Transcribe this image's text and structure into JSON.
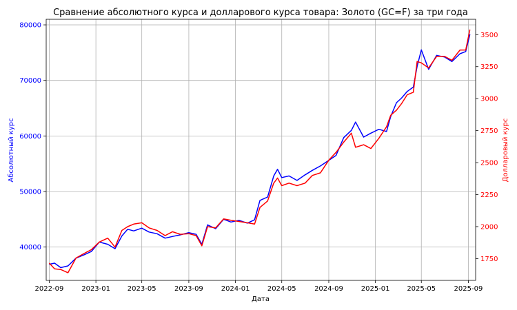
{
  "chart_data": {
    "type": "line",
    "title": "Сравнение абсолютного курса и долларового курса товара: Золото (GC=F) за три года",
    "xlabel": "Дата",
    "ylabel_left": "Абсолютный курс",
    "ylabel_right": "Долларовый курс",
    "grid": true,
    "colors": {
      "left": "#0000ff",
      "right": "#ff0000"
    },
    "x_ticks": [
      "2022-09",
      "2023-01",
      "2023-05",
      "2023-09",
      "2024-01",
      "2024-05",
      "2024-09",
      "2025-01",
      "2025-05",
      "2025-09"
    ],
    "y_left_ticks": [
      "40000",
      "50000",
      "60000",
      "70000",
      "80000"
    ],
    "y_right_ticks": [
      "1750",
      "2000",
      "2250",
      "2500",
      "2750",
      "3000",
      "3250",
      "3500"
    ],
    "ylim_left": [
      34000,
      81000
    ],
    "ylim_right": [
      1580,
      3620
    ],
    "x_range": [
      "2022-08-24",
      "2025-09-20"
    ],
    "series": [
      {
        "name": "Абсолютный курс",
        "axis": "left",
        "x": [
          "2022-09-01",
          "2022-09-15",
          "2022-10-01",
          "2022-10-20",
          "2022-11-10",
          "2022-12-01",
          "2022-12-20",
          "2023-01-10",
          "2023-02-01",
          "2023-02-20",
          "2023-03-10",
          "2023-03-25",
          "2023-04-10",
          "2023-05-01",
          "2023-05-20",
          "2023-06-10",
          "2023-07-01",
          "2023-07-20",
          "2023-08-10",
          "2023-09-01",
          "2023-09-20",
          "2023-10-05",
          "2023-10-20",
          "2023-11-10",
          "2023-12-01",
          "2023-12-20",
          "2024-01-10",
          "2024-02-01",
          "2024-02-20",
          "2024-03-05",
          "2024-03-25",
          "2024-04-10",
          "2024-04-20",
          "2024-05-01",
          "2024-05-20",
          "2024-06-10",
          "2024-07-01",
          "2024-07-20",
          "2024-08-10",
          "2024-09-01",
          "2024-09-20",
          "2024-10-10",
          "2024-10-30",
          "2024-11-10",
          "2024-12-01",
          "2024-12-20",
          "2025-01-10",
          "2025-01-30",
          "2025-02-10",
          "2025-02-25",
          "2025-03-10",
          "2025-03-25",
          "2025-04-10",
          "2025-04-20",
          "2025-05-01",
          "2025-05-20",
          "2025-06-10",
          "2025-07-01",
          "2025-07-20",
          "2025-08-10",
          "2025-08-25",
          "2025-09-05"
        ],
        "values": [
          36900,
          37100,
          36300,
          36600,
          38000,
          38600,
          39200,
          40900,
          40500,
          39700,
          42000,
          43200,
          42900,
          43400,
          42700,
          42400,
          41600,
          41900,
          42200,
          42600,
          42300,
          40500,
          44000,
          43300,
          45000,
          44500,
          44800,
          44300,
          44900,
          48400,
          49000,
          52800,
          54000,
          52500,
          52800,
          52000,
          53000,
          53800,
          54600,
          55600,
          56500,
          59700,
          61000,
          62500,
          59800,
          60500,
          61200,
          60800,
          63500,
          66000,
          66800,
          68000,
          68800,
          72500,
          75500,
          72000,
          74500,
          74200,
          73400,
          74800,
          75200,
          78300
        ]
      },
      {
        "name": "Долларовый курс",
        "axis": "right",
        "x": [
          "2022-09-01",
          "2022-09-15",
          "2022-10-01",
          "2022-10-20",
          "2022-11-10",
          "2022-12-01",
          "2022-12-20",
          "2023-01-10",
          "2023-02-01",
          "2023-02-20",
          "2023-03-10",
          "2023-03-25",
          "2023-04-10",
          "2023-05-01",
          "2023-05-20",
          "2023-06-10",
          "2023-07-01",
          "2023-07-20",
          "2023-08-10",
          "2023-09-01",
          "2023-09-20",
          "2023-10-05",
          "2023-10-20",
          "2023-11-10",
          "2023-12-01",
          "2023-12-20",
          "2024-01-10",
          "2024-02-01",
          "2024-02-20",
          "2024-03-05",
          "2024-03-25",
          "2024-04-10",
          "2024-04-20",
          "2024-05-01",
          "2024-05-20",
          "2024-06-10",
          "2024-07-01",
          "2024-07-20",
          "2024-08-10",
          "2024-09-01",
          "2024-09-20",
          "2024-10-10",
          "2024-10-30",
          "2024-11-10",
          "2024-12-01",
          "2024-12-20",
          "2025-01-10",
          "2025-01-30",
          "2025-02-10",
          "2025-02-25",
          "2025-03-10",
          "2025-03-25",
          "2025-04-10",
          "2025-04-20",
          "2025-05-01",
          "2025-05-20",
          "2025-06-10",
          "2025-07-01",
          "2025-07-20",
          "2025-08-10",
          "2025-08-25",
          "2025-09-05"
        ],
        "values": [
          1715,
          1670,
          1665,
          1640,
          1755,
          1790,
          1820,
          1880,
          1910,
          1840,
          1970,
          2000,
          2020,
          2030,
          1990,
          1970,
          1930,
          1960,
          1940,
          1945,
          1930,
          1850,
          2000,
          1990,
          2060,
          2050,
          2040,
          2030,
          2020,
          2150,
          2200,
          2340,
          2380,
          2320,
          2340,
          2320,
          2340,
          2400,
          2420,
          2520,
          2580,
          2660,
          2730,
          2620,
          2640,
          2610,
          2690,
          2780,
          2870,
          2910,
          2960,
          3030,
          3050,
          3290,
          3280,
          3240,
          3330,
          3330,
          3300,
          3380,
          3380,
          3540
        ]
      }
    ]
  }
}
